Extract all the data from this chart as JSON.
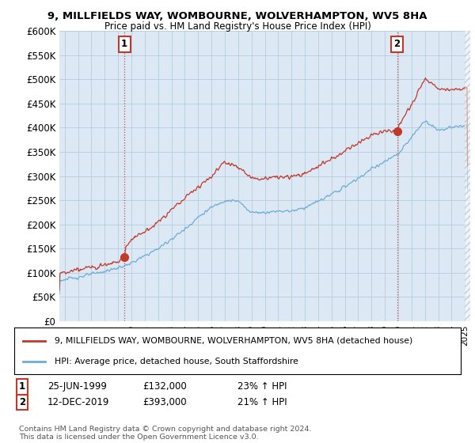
{
  "title_line1": "9, MILLFIELDS WAY, WOMBOURNE, WOLVERHAMPTON, WV5 8HA",
  "title_line2": "Price paid vs. HM Land Registry's House Price Index (HPI)",
  "ylim": [
    0,
    600000
  ],
  "yticks": [
    0,
    50000,
    100000,
    150000,
    200000,
    250000,
    300000,
    350000,
    400000,
    450000,
    500000,
    550000,
    600000
  ],
  "ytick_labels": [
    "£0",
    "£50K",
    "£100K",
    "£150K",
    "£200K",
    "£250K",
    "£300K",
    "£350K",
    "£400K",
    "£450K",
    "£500K",
    "£550K",
    "£600K"
  ],
  "hpi_color": "#6dadd6",
  "price_color": "#c0392b",
  "xlim_min": 1994.6,
  "xlim_max": 2025.4,
  "sale1_x": 1999.48,
  "sale1_y": 132000,
  "sale2_x": 2019.92,
  "sale2_y": 393000,
  "sale1_date": "25-JUN-1999",
  "sale1_price": "£132,000",
  "sale1_hpi": "23% ↑ HPI",
  "sale2_date": "12-DEC-2019",
  "sale2_price": "£393,000",
  "sale2_hpi": "21% ↑ HPI",
  "legend_label_price": "9, MILLFIELDS WAY, WOMBOURNE, WOLVERHAMPTON, WV5 8HA (detached house)",
  "legend_label_hpi": "HPI: Average price, detached house, South Staffordshire",
  "footer_text": "Contains HM Land Registry data © Crown copyright and database right 2024.\nThis data is licensed under the Open Government Licence v3.0.",
  "chart_bg_color": "#dce9f5",
  "background_color": "#ffffff",
  "grid_color": "#aec6d8",
  "hpi_interp_x": [
    1994.6,
    1995,
    1996,
    1997,
    1998,
    1999,
    2000,
    2001,
    2002,
    2003,
    2004,
    2005,
    2006,
    2007,
    2008,
    2009,
    2010,
    2011,
    2012,
    2013,
    2014,
    2015,
    2016,
    2017,
    2018,
    2019,
    2020,
    2021,
    2022,
    2023,
    2024,
    2025
  ],
  "hpi_interp_y": [
    84000,
    86000,
    91000,
    97000,
    103000,
    110000,
    120000,
    135000,
    150000,
    170000,
    190000,
    215000,
    235000,
    250000,
    248000,
    225000,
    225000,
    228000,
    228000,
    235000,
    248000,
    262000,
    278000,
    295000,
    315000,
    330000,
    345000,
    380000,
    415000,
    395000,
    400000,
    405000
  ],
  "price_interp_x": [
    1994.6,
    1995,
    1996,
    1997,
    1998,
    1999,
    1999.48,
    1999.6,
    2000,
    2001,
    2002,
    2003,
    2004,
    2005,
    2006,
    2007,
    2008,
    2009,
    2010,
    2011,
    2012,
    2013,
    2014,
    2015,
    2016,
    2017,
    2018,
    2019,
    2019.92,
    2020,
    2021,
    2022,
    2023,
    2024,
    2025
  ],
  "price_interp_y": [
    98000,
    100000,
    106000,
    112000,
    118000,
    124000,
    132000,
    155000,
    170000,
    185000,
    205000,
    230000,
    255000,
    278000,
    300000,
    330000,
    320000,
    295000,
    295000,
    298000,
    298000,
    305000,
    320000,
    335000,
    352000,
    368000,
    385000,
    393000,
    393000,
    403000,
    448000,
    500000,
    482000,
    478000,
    482000
  ]
}
